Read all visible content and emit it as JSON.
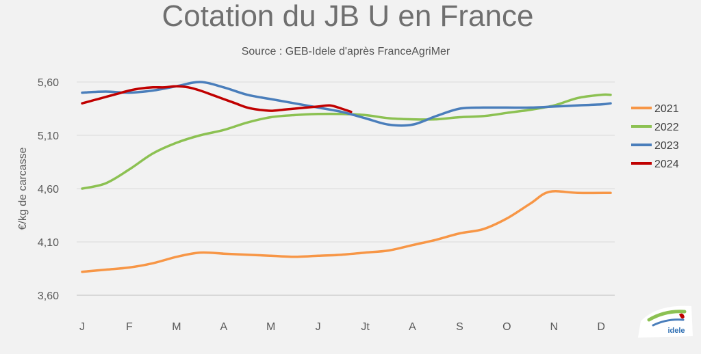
{
  "chart_data": {
    "type": "line",
    "title": "Cotation du JB U en France",
    "subtitle": "Source : GEB-Idele d'après FranceAgriMer",
    "ylabel": "€/kg de carcasse",
    "xlabel": "",
    "categories": [
      "J",
      "F",
      "M",
      "A",
      "M",
      "J",
      "Jt",
      "A",
      "S",
      "O",
      "N",
      "D"
    ],
    "ylim": [
      3.6,
      5.6
    ],
    "yticks": [
      "5,60",
      "5,10",
      "4,60",
      "4,10",
      "3,60"
    ],
    "ytick_values": [
      5.6,
      5.1,
      4.6,
      4.1,
      3.6
    ],
    "grid": true,
    "legend": "right",
    "x_range": [
      1,
      12.2
    ],
    "series": [
      {
        "name": "2021",
        "color": "#f79646",
        "x": [
          1.0,
          1.5,
          2.0,
          2.5,
          3.0,
          3.5,
          4.0,
          4.5,
          5.0,
          5.5,
          6.0,
          6.5,
          7.0,
          7.5,
          8.0,
          8.5,
          9.0,
          9.5,
          10.0,
          10.5,
          10.9,
          11.5,
          12.2
        ],
        "values": [
          3.82,
          3.84,
          3.86,
          3.9,
          3.96,
          4.0,
          3.99,
          3.98,
          3.97,
          3.96,
          3.97,
          3.98,
          4.0,
          4.02,
          4.07,
          4.12,
          4.18,
          4.22,
          4.32,
          4.46,
          4.57,
          4.56,
          4.56
        ]
      },
      {
        "name": "2022",
        "color": "#8cc152",
        "x": [
          1.0,
          1.5,
          2.0,
          2.5,
          3.0,
          3.5,
          4.0,
          4.5,
          5.0,
          5.5,
          6.0,
          6.5,
          7.0,
          7.5,
          8.0,
          8.5,
          9.0,
          9.5,
          10.0,
          10.5,
          11.0,
          11.5,
          12.0,
          12.2
        ],
        "values": [
          4.6,
          4.65,
          4.78,
          4.93,
          5.03,
          5.1,
          5.15,
          5.22,
          5.27,
          5.29,
          5.3,
          5.3,
          5.29,
          5.26,
          5.25,
          5.25,
          5.27,
          5.28,
          5.31,
          5.34,
          5.38,
          5.45,
          5.48,
          5.48
        ]
      },
      {
        "name": "2023",
        "color": "#4a7ebb",
        "x": [
          1.0,
          1.5,
          2.0,
          2.5,
          3.0,
          3.5,
          4.0,
          4.5,
          5.0,
          5.5,
          6.0,
          6.5,
          7.0,
          7.5,
          8.0,
          8.5,
          9.0,
          9.5,
          10.0,
          10.5,
          11.0,
          11.5,
          12.0,
          12.2
        ],
        "values": [
          5.5,
          5.51,
          5.5,
          5.52,
          5.56,
          5.6,
          5.55,
          5.48,
          5.44,
          5.4,
          5.36,
          5.32,
          5.26,
          5.2,
          5.2,
          5.28,
          5.35,
          5.36,
          5.36,
          5.36,
          5.37,
          5.38,
          5.39,
          5.4
        ]
      },
      {
        "name": "2024",
        "color": "#c00000",
        "x": [
          1.0,
          1.25,
          1.5,
          1.75,
          2.0,
          2.25,
          2.5,
          2.75,
          3.0,
          3.25,
          3.5,
          3.75,
          4.0,
          4.25,
          4.5,
          4.75,
          5.0,
          5.25,
          5.5,
          5.75,
          6.0,
          6.25,
          6.5,
          6.7
        ],
        "values": [
          5.4,
          5.43,
          5.46,
          5.49,
          5.52,
          5.54,
          5.55,
          5.55,
          5.56,
          5.55,
          5.52,
          5.48,
          5.44,
          5.4,
          5.36,
          5.34,
          5.33,
          5.34,
          5.35,
          5.36,
          5.37,
          5.38,
          5.35,
          5.32
        ]
      }
    ]
  },
  "logo": {
    "icon": "idele-logo-icon",
    "text": "idele"
  }
}
